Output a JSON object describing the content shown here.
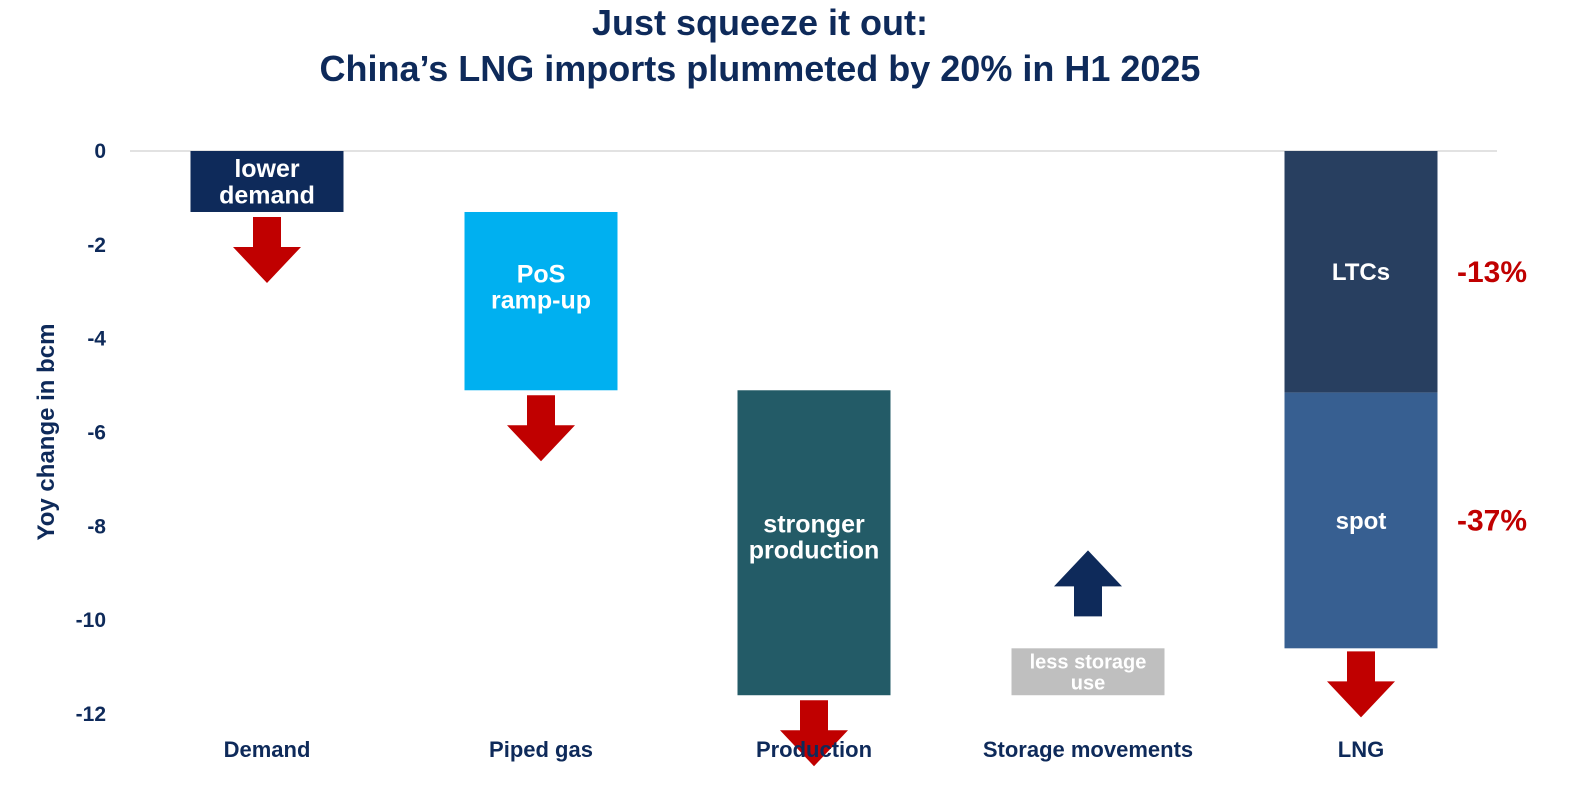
{
  "title_line1": "Just squeeze it out:",
  "title_line2": "China’s LNG imports plummeted by 20% in H1 2025",
  "chart_data": {
    "type": "bar",
    "subtype": "waterfall",
    "ylabel": "Yoy change in bcm",
    "ylim": [
      -12,
      0
    ],
    "yticks": [
      0,
      -2,
      -4,
      -6,
      -8,
      -10,
      -12
    ],
    "grid": false,
    "categories": [
      "Demand",
      "Piped gas",
      "Production",
      "Storage movements",
      "LNG"
    ],
    "bars": [
      {
        "category": "Demand",
        "start": 0,
        "end": -1.3,
        "label": [
          "lower",
          "demand"
        ],
        "color": "#0e2a5a",
        "arrow": "down",
        "arrow_color": "#c00000"
      },
      {
        "category": "Piped gas",
        "start": -1.3,
        "end": -5.1,
        "label": [
          "PoS",
          "ramp-up"
        ],
        "color": "#00b0f0",
        "arrow": "down",
        "arrow_color": "#c00000"
      },
      {
        "category": "Production",
        "start": -5.1,
        "end": -11.6,
        "label": [
          "stronger",
          "production"
        ],
        "color": "#235b67",
        "arrow": "down",
        "arrow_color": "#c00000"
      },
      {
        "category": "Storage movements",
        "start": -11.6,
        "end": -10.6,
        "label": [
          "less storage",
          "use"
        ],
        "color": "#bfbfbf",
        "arrow": "up",
        "arrow_color": "#0e2a5a"
      },
      {
        "category": "LNG",
        "segments": [
          {
            "name": "LTCs",
            "start": 0,
            "end": -5.15,
            "color": "#283f60",
            "change": "-13%"
          },
          {
            "name": "spot",
            "start": -5.15,
            "end": -10.6,
            "color": "#375f91",
            "change": "-37%"
          }
        ],
        "arrow": "down",
        "arrow_color": "#c00000"
      }
    ]
  }
}
